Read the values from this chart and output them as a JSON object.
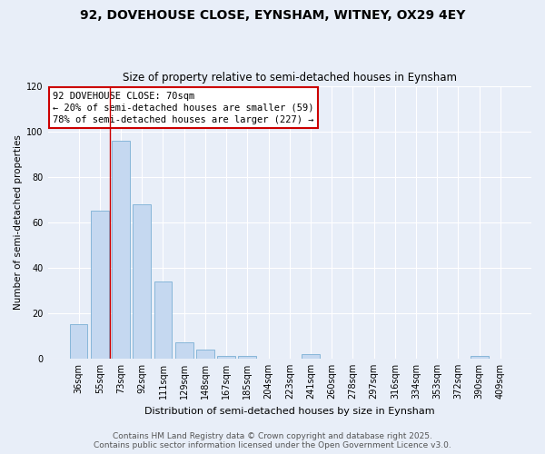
{
  "title": "92, DOVEHOUSE CLOSE, EYNSHAM, WITNEY, OX29 4EY",
  "subtitle": "Size of property relative to semi-detached houses in Eynsham",
  "xlabel": "Distribution of semi-detached houses by size in Eynsham",
  "ylabel": "Number of semi-detached properties",
  "categories": [
    "36sqm",
    "55sqm",
    "73sqm",
    "92sqm",
    "111sqm",
    "129sqm",
    "148sqm",
    "167sqm",
    "185sqm",
    "204sqm",
    "223sqm",
    "241sqm",
    "260sqm",
    "278sqm",
    "297sqm",
    "316sqm",
    "334sqm",
    "353sqm",
    "372sqm",
    "390sqm",
    "409sqm"
  ],
  "values": [
    15,
    65,
    96,
    68,
    34,
    7,
    4,
    1,
    1,
    0,
    0,
    2,
    0,
    0,
    0,
    0,
    0,
    0,
    0,
    1,
    0
  ],
  "bar_color": "#c5d8f0",
  "bar_edge_color": "#7bafd4",
  "vline_color": "#cc0000",
  "vline_x": 1.5,
  "annotation_title": "92 DOVEHOUSE CLOSE: 70sqm",
  "annotation_line1": "← 20% of semi-detached houses are smaller (59)",
  "annotation_line2": "78% of semi-detached houses are larger (227) →",
  "annotation_box_color": "#cc0000",
  "bg_color": "#e8eef8",
  "plot_bg_color": "#e8eef8",
  "ylim": [
    0,
    120
  ],
  "yticks": [
    0,
    20,
    40,
    60,
    80,
    100,
    120
  ],
  "footer_line1": "Contains HM Land Registry data © Crown copyright and database right 2025.",
  "footer_line2": "Contains public sector information licensed under the Open Government Licence v3.0.",
  "title_fontsize": 10,
  "subtitle_fontsize": 8.5,
  "axis_label_fontsize": 8,
  "tick_fontsize": 7,
  "annotation_fontsize": 7.5,
  "footer_fontsize": 6.5,
  "ylabel_fontsize": 7.5
}
